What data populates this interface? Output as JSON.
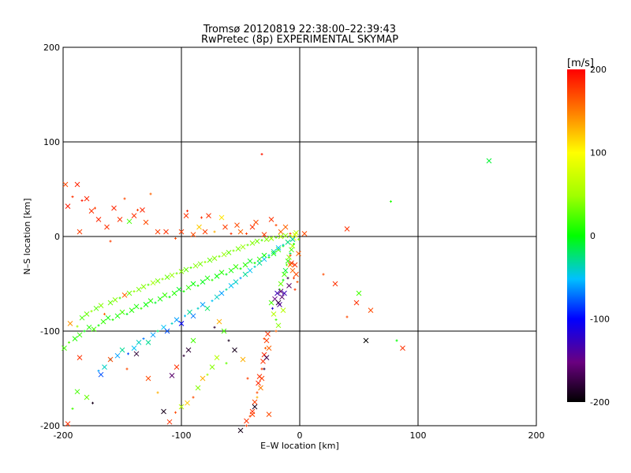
{
  "chart_data": {
    "type": "scatter",
    "title": "Tromsø 20120819 22:38:00–22:39:43",
    "subtitle": "RwPretec (8p) EXPERIMENTAL SKYMAP",
    "xlabel": "E–W location [km]",
    "ylabel": "N–S location [km]",
    "xlim": [
      -200,
      200
    ],
    "ylim": [
      -200,
      200
    ],
    "xticks": [
      -200,
      -100,
      0,
      100,
      200
    ],
    "yticks": [
      -200,
      -100,
      0,
      100,
      200
    ],
    "grid": true,
    "colorbar": {
      "label": "[m/s]",
      "range": [
        -200,
        200
      ],
      "ticks": [
        200,
        100,
        0,
        -100,
        -200
      ],
      "colormap": "rainbow"
    },
    "markers": {
      "large": "x",
      "small": "+"
    },
    "points": [
      [
        -198,
        55,
        170
      ],
      [
        -196,
        32,
        190
      ],
      [
        -192,
        42,
        180
      ],
      [
        -188,
        55,
        185
      ],
      [
        -186,
        5,
        175
      ],
      [
        -184,
        38,
        190
      ],
      [
        -180,
        40,
        185
      ],
      [
        -176,
        27,
        180
      ],
      [
        -173,
        30,
        175
      ],
      [
        -170,
        18,
        185
      ],
      [
        -163,
        10,
        180
      ],
      [
        -160,
        -5,
        175
      ],
      [
        -157,
        30,
        185
      ],
      [
        -152,
        18,
        180
      ],
      [
        -148,
        40,
        170
      ],
      [
        -144,
        16,
        20
      ],
      [
        -140,
        22,
        180
      ],
      [
        -137,
        28,
        175
      ],
      [
        -133,
        28,
        185
      ],
      [
        -130,
        15,
        170
      ],
      [
        -126,
        45,
        160
      ],
      [
        -120,
        5,
        175
      ],
      [
        -113,
        5,
        180
      ],
      [
        -105,
        -2,
        170
      ],
      [
        -100,
        5,
        175
      ],
      [
        -96,
        22,
        180
      ],
      [
        -95,
        27,
        185
      ],
      [
        -90,
        2,
        170
      ],
      [
        -85,
        10,
        120
      ],
      [
        -83,
        20,
        180
      ],
      [
        -80,
        5,
        175
      ],
      [
        -77,
        22,
        180
      ],
      [
        -72,
        5,
        130
      ],
      [
        -66,
        20,
        110
      ],
      [
        -63,
        10,
        175
      ],
      [
        -58,
        3,
        180
      ],
      [
        -53,
        12,
        170
      ],
      [
        -50,
        5,
        160
      ],
      [
        -45,
        3,
        175
      ],
      [
        -40,
        10,
        180
      ],
      [
        -37,
        15,
        170
      ],
      [
        -32,
        87,
        190
      ],
      [
        -30,
        2,
        175
      ],
      [
        -24,
        18,
        180
      ],
      [
        -20,
        12,
        170
      ],
      [
        -16,
        5,
        160
      ],
      [
        -12,
        10,
        160
      ],
      [
        -8,
        3,
        175
      ],
      [
        -5,
        -2,
        100
      ],
      [
        -3,
        4,
        60
      ],
      [
        -1,
        -3,
        40
      ],
      [
        4,
        3,
        170
      ],
      [
        40,
        8,
        180
      ],
      [
        77,
        37,
        10
      ],
      [
        160,
        80,
        -10
      ],
      [
        -194,
        -92,
        140
      ],
      [
        -188,
        -95,
        50
      ],
      [
        -184,
        -86,
        20
      ],
      [
        -180,
        -82,
        30
      ],
      [
        -176,
        -79,
        45
      ],
      [
        -172,
        -76,
        25
      ],
      [
        -168,
        -73,
        40
      ],
      [
        -165,
        -82,
        160
      ],
      [
        -160,
        -70,
        30
      ],
      [
        -156,
        -67,
        40
      ],
      [
        -152,
        -65,
        20
      ],
      [
        -148,
        -62,
        160
      ],
      [
        -144,
        -60,
        30
      ],
      [
        -140,
        -58,
        45
      ],
      [
        -136,
        -56,
        35
      ],
      [
        -132,
        -53,
        40
      ],
      [
        -128,
        -51,
        25
      ],
      [
        -124,
        -49,
        50
      ],
      [
        -120,
        -47,
        35
      ],
      [
        -116,
        -45,
        40
      ],
      [
        -112,
        -43,
        30
      ],
      [
        -108,
        -41,
        45
      ],
      [
        -104,
        -39,
        35
      ],
      [
        -100,
        -37,
        40
      ],
      [
        -96,
        -35,
        30
      ],
      [
        -92,
        -33,
        25
      ],
      [
        -88,
        -31,
        40
      ],
      [
        -84,
        -29,
        35
      ],
      [
        -80,
        -27,
        45
      ],
      [
        -76,
        -25,
        30
      ],
      [
        -72,
        -23,
        40
      ],
      [
        -68,
        -21,
        35
      ],
      [
        -64,
        -19,
        45
      ],
      [
        -60,
        -17,
        30
      ],
      [
        -56,
        -15,
        40
      ],
      [
        -52,
        -13,
        35
      ],
      [
        -48,
        -11,
        45
      ],
      [
        -44,
        -9,
        30
      ],
      [
        -40,
        -7,
        40
      ],
      [
        -36,
        -5,
        35
      ],
      [
        -32,
        -4,
        25
      ],
      [
        -28,
        -3,
        40
      ],
      [
        -24,
        -2,
        45
      ],
      [
        -20,
        -1,
        30
      ],
      [
        -16,
        0,
        50
      ],
      [
        -12,
        1,
        40
      ],
      [
        -8,
        1,
        60
      ],
      [
        -4,
        2,
        80
      ],
      [
        -199,
        -118,
        20
      ],
      [
        -195,
        -112,
        25
      ],
      [
        -190,
        -108,
        10
      ],
      [
        -186,
        -104,
        15
      ],
      [
        -182,
        -100,
        0
      ],
      [
        -178,
        -96,
        10
      ],
      [
        -174,
        -98,
        20
      ],
      [
        -170,
        -94,
        5
      ],
      [
        -166,
        -90,
        15
      ],
      [
        -162,
        -86,
        0
      ],
      [
        -158,
        -88,
        10
      ],
      [
        -154,
        -84,
        5
      ],
      [
        -150,
        -80,
        20
      ],
      [
        -146,
        -82,
        -5
      ],
      [
        -142,
        -78,
        10
      ],
      [
        -138,
        -74,
        5
      ],
      [
        -134,
        -76,
        15
      ],
      [
        -130,
        -72,
        0
      ],
      [
        -126,
        -68,
        10
      ],
      [
        -122,
        -70,
        -10
      ],
      [
        -118,
        -66,
        5
      ],
      [
        -114,
        -62,
        15
      ],
      [
        -110,
        -64,
        0
      ],
      [
        -106,
        -60,
        10
      ],
      [
        -102,
        -56,
        -5
      ],
      [
        -98,
        -58,
        5
      ],
      [
        -94,
        -54,
        15
      ],
      [
        -90,
        -50,
        0
      ],
      [
        -86,
        -52,
        10
      ],
      [
        -82,
        -48,
        -5
      ],
      [
        -78,
        -44,
        5
      ],
      [
        -74,
        -46,
        15
      ],
      [
        -70,
        -42,
        0
      ],
      [
        -66,
        -38,
        10
      ],
      [
        -62,
        -40,
        -5
      ],
      [
        -58,
        -36,
        5
      ],
      [
        -54,
        -32,
        15
      ],
      [
        -50,
        -34,
        0
      ],
      [
        -46,
        -30,
        10
      ],
      [
        -42,
        -26,
        -5
      ],
      [
        -38,
        -28,
        5
      ],
      [
        -34,
        -24,
        15
      ],
      [
        -30,
        -20,
        0
      ],
      [
        -26,
        -22,
        10
      ],
      [
        -22,
        -18,
        5
      ],
      [
        -18,
        -14,
        15
      ],
      [
        -14,
        -10,
        0
      ],
      [
        -10,
        -6,
        10
      ],
      [
        -6,
        -3,
        20
      ],
      [
        -160,
        -130,
        -40
      ],
      [
        -154,
        -126,
        -60
      ],
      [
        -150,
        -120,
        -30
      ],
      [
        -145,
        -124,
        -80
      ],
      [
        -140,
        -118,
        -50
      ],
      [
        -136,
        -112,
        -40
      ],
      [
        -132,
        -108,
        -70
      ],
      [
        -128,
        -112,
        -30
      ],
      [
        -124,
        -104,
        -60
      ],
      [
        -120,
        -100,
        -20
      ],
      [
        -115,
        -96,
        -50
      ],
      [
        -112,
        -100,
        -80
      ],
      [
        -108,
        -92,
        -40
      ],
      [
        -104,
        -88,
        -60
      ],
      [
        -100,
        -92,
        -100
      ],
      [
        -97,
        -84,
        -50
      ],
      [
        -93,
        -80,
        -30
      ],
      [
        -90,
        -84,
        -70
      ],
      [
        -86,
        -76,
        -40
      ],
      [
        -82,
        -72,
        -60
      ],
      [
        -78,
        -76,
        -20
      ],
      [
        -74,
        -68,
        -50
      ],
      [
        -70,
        -64,
        -40
      ],
      [
        -66,
        -60,
        -60
      ],
      [
        -62,
        -56,
        -30
      ],
      [
        -58,
        -52,
        -50
      ],
      [
        -54,
        -48,
        -40
      ],
      [
        -50,
        -44,
        -60
      ],
      [
        -46,
        -40,
        -30
      ],
      [
        -42,
        -36,
        -50
      ],
      [
        -38,
        -32,
        -40
      ],
      [
        -34,
        -28,
        -30
      ],
      [
        -30,
        -24,
        -50
      ],
      [
        -26,
        -20,
        -40
      ],
      [
        -22,
        -16,
        -30
      ],
      [
        -18,
        -12,
        -50
      ],
      [
        -14,
        -9,
        -40
      ],
      [
        -10,
        -6,
        -30
      ],
      [
        -6,
        -3,
        -40
      ],
      [
        -170,
        -142,
        -60
      ],
      [
        -165,
        -138,
        -40
      ],
      [
        -24,
        -70,
        20
      ],
      [
        -23,
        -76,
        -120
      ],
      [
        -22,
        -82,
        60
      ],
      [
        -21,
        -66,
        -150
      ],
      [
        -20,
        -88,
        20
      ],
      [
        -19,
        -60,
        -130
      ],
      [
        -18,
        -94,
        40
      ],
      [
        -17,
        -56,
        10
      ],
      [
        -16,
        -50,
        30
      ],
      [
        -15,
        -64,
        -160
      ],
      [
        -14,
        -46,
        0
      ],
      [
        -13,
        -40,
        20
      ],
      [
        -12,
        -36,
        -10
      ],
      [
        -11,
        -30,
        30
      ],
      [
        -10,
        -26,
        10
      ],
      [
        -9,
        -22,
        40
      ],
      [
        -8,
        -18,
        -20
      ],
      [
        -7,
        -14,
        20
      ],
      [
        -6,
        -10,
        60
      ],
      [
        -5,
        -8,
        10
      ],
      [
        -18,
        -70,
        -180
      ],
      [
        -16,
        -58,
        -160
      ],
      [
        -20,
        -100,
        160
      ],
      [
        -17,
        -72,
        -140
      ],
      [
        -13,
        -60,
        -130
      ],
      [
        -10,
        -44,
        -170
      ],
      [
        -14,
        -78,
        60
      ],
      [
        -8,
        -30,
        150
      ],
      [
        -8,
        -20,
        170
      ],
      [
        -7,
        -28,
        180
      ],
      [
        -6,
        -36,
        160
      ],
      [
        -5,
        -44,
        175
      ],
      [
        -4,
        -30,
        180
      ],
      [
        -3,
        -40,
        170
      ],
      [
        -2,
        -48,
        165
      ],
      [
        -1,
        -18,
        160
      ],
      [
        -9,
        -52,
        -160
      ],
      [
        -4,
        -56,
        180
      ],
      [
        -40,
        -185,
        180
      ],
      [
        -38,
        -175,
        175
      ],
      [
        -36,
        -165,
        170
      ],
      [
        -35,
        -155,
        185
      ],
      [
        -34,
        -148,
        180
      ],
      [
        -32,
        -140,
        175
      ],
      [
        -31,
        -132,
        180
      ],
      [
        -30,
        -125,
        185
      ],
      [
        -29,
        -118,
        160
      ],
      [
        -28,
        -110,
        175
      ],
      [
        -27,
        -103,
        180
      ],
      [
        -42,
        -190,
        170
      ],
      [
        -45,
        -195,
        180
      ],
      [
        -38,
        -180,
        -190
      ],
      [
        -36,
        -170,
        130
      ],
      [
        -33,
        -160,
        150
      ],
      [
        -32,
        -150,
        175
      ],
      [
        -30,
        -140,
        -180
      ],
      [
        -28,
        -128,
        -170
      ],
      [
        -26,
        -118,
        160
      ],
      [
        -30,
        -108,
        170
      ],
      [
        -40,
        -188,
        175
      ],
      [
        -55,
        -120,
        -190
      ],
      [
        -62,
        -134,
        30
      ],
      [
        -70,
        -128,
        60
      ],
      [
        -74,
        -138,
        40
      ],
      [
        -78,
        -146,
        50
      ],
      [
        -82,
        -150,
        130
      ],
      [
        -86,
        -160,
        40
      ],
      [
        -90,
        -170,
        170
      ],
      [
        -95,
        -176,
        120
      ],
      [
        -100,
        -180,
        60
      ],
      [
        -105,
        -186,
        170
      ],
      [
        -110,
        -196,
        180
      ],
      [
        -115,
        -185,
        -190
      ],
      [
        -60,
        -110,
        -190
      ],
      [
        -64,
        -100,
        20
      ],
      [
        -68,
        -90,
        130
      ],
      [
        -72,
        -96,
        -180
      ],
      [
        -90,
        -110,
        20
      ],
      [
        -94,
        -120,
        -180
      ],
      [
        -98,
        -126,
        -180
      ],
      [
        -104,
        -138,
        180
      ],
      [
        -108,
        -147,
        -160
      ],
      [
        -120,
        -165,
        130
      ],
      [
        -128,
        -150,
        170
      ],
      [
        -138,
        -124,
        -180
      ],
      [
        -146,
        -140,
        170
      ],
      [
        -160,
        -130,
        170
      ],
      [
        -168,
        -146,
        -80
      ],
      [
        -175,
        -176,
        -190
      ],
      [
        -180,
        -170,
        30
      ],
      [
        -188,
        -164,
        20
      ],
      [
        -192,
        -182,
        20
      ],
      [
        -196,
        -198,
        180
      ],
      [
        -186,
        -128,
        180
      ],
      [
        -45,
        -200,
        175
      ],
      [
        -50,
        -205,
        -190
      ],
      [
        -48,
        -130,
        130
      ],
      [
        -44,
        -150,
        175
      ],
      [
        -26,
        -188,
        170
      ],
      [
        56,
        -110,
        -200
      ],
      [
        82,
        -110,
        0
      ],
      [
        87,
        -118,
        180
      ],
      [
        48,
        -70,
        180
      ],
      [
        40,
        -85,
        170
      ],
      [
        60,
        -78,
        170
      ],
      [
        30,
        -50,
        180
      ],
      [
        20,
        -40,
        170
      ],
      [
        50,
        -60,
        20
      ]
    ]
  }
}
